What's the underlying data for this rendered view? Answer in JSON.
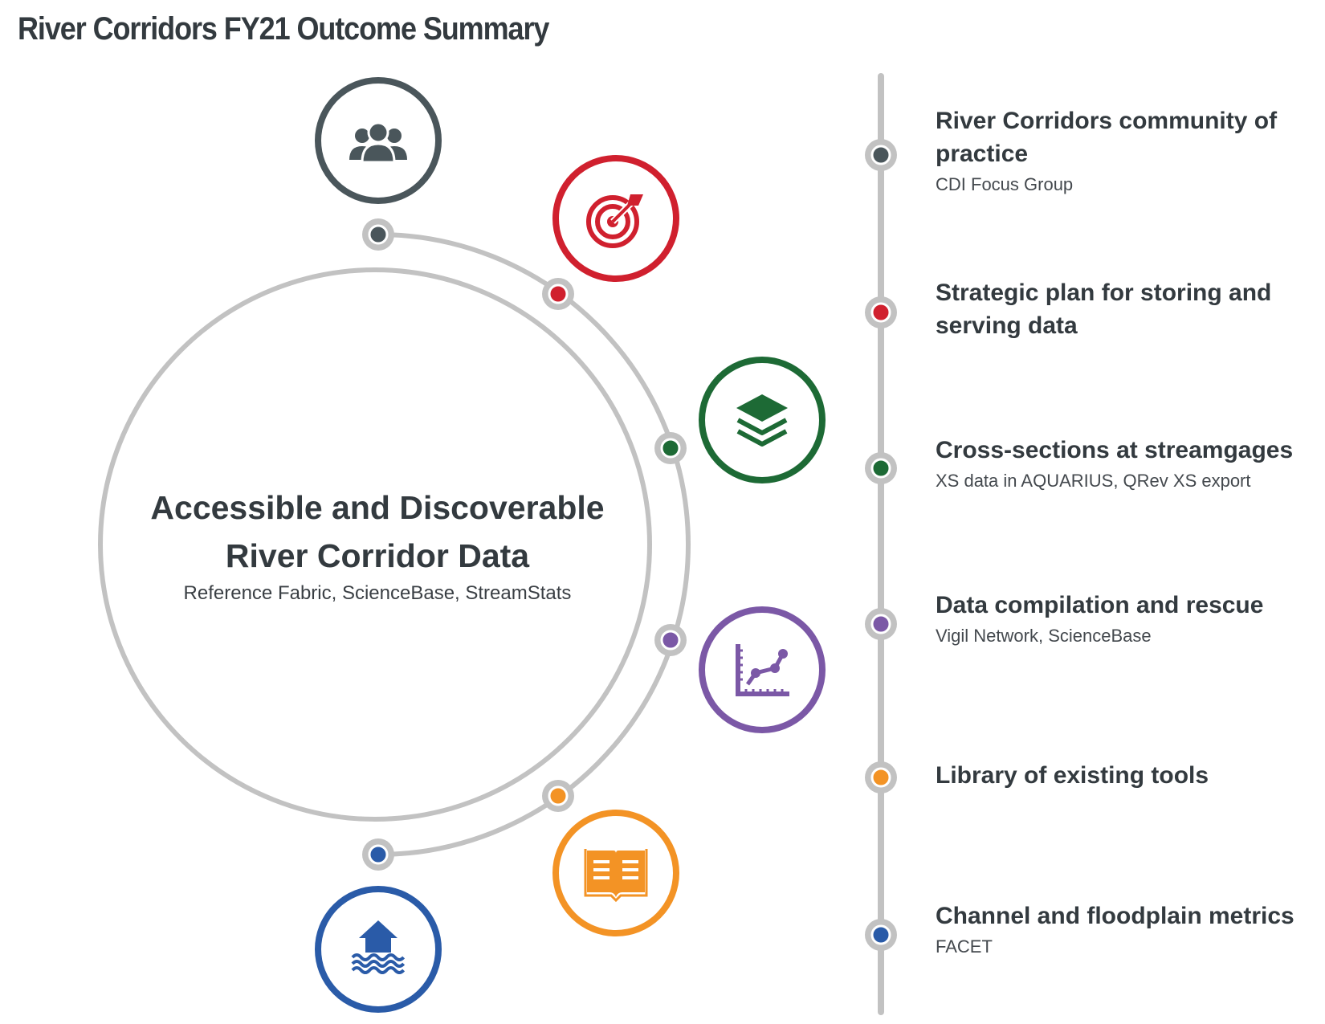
{
  "title": "River Corridors FY21 Outcome Summary",
  "center": {
    "title_line1": "Accessible and Discoverable",
    "title_line2": "River Corridor Data",
    "subtitle": "Reference Fabric, ScienceBase, StreamStats"
  },
  "colors": {
    "gray": "#4a565b",
    "red": "#d0202e",
    "green": "#1d6a35",
    "purple": "#7b58a6",
    "orange": "#f39325",
    "blue": "#2a5ba8",
    "line": "#c2c2c2"
  },
  "outcomes": [
    {
      "title_lines": [
        "River Corridors community of",
        "practice"
      ],
      "subtitle": "CDI Focus Group",
      "color": "#4a565b",
      "icon": "people-group-icon"
    },
    {
      "title_lines": [
        "Strategic plan for storing and",
        "serving data"
      ],
      "subtitle": "",
      "color": "#d0202e",
      "icon": "target-icon"
    },
    {
      "title_lines": [
        "Cross-sections at streamgages"
      ],
      "subtitle": "XS data in AQUARIUS, QRev XS export",
      "color": "#1d6a35",
      "icon": "layers-icon"
    },
    {
      "title_lines": [
        "Data compilation and rescue"
      ],
      "subtitle": "Vigil Network, ScienceBase",
      "color": "#7b58a6",
      "icon": "line-chart-icon"
    },
    {
      "title_lines": [
        "Library of existing tools"
      ],
      "subtitle": "",
      "color": "#f39325",
      "icon": "open-book-icon"
    },
    {
      "title_lines": [
        "Channel and floodplain metrics"
      ],
      "subtitle": "FACET",
      "color": "#2a5ba8",
      "icon": "flooded-house-icon"
    }
  ]
}
